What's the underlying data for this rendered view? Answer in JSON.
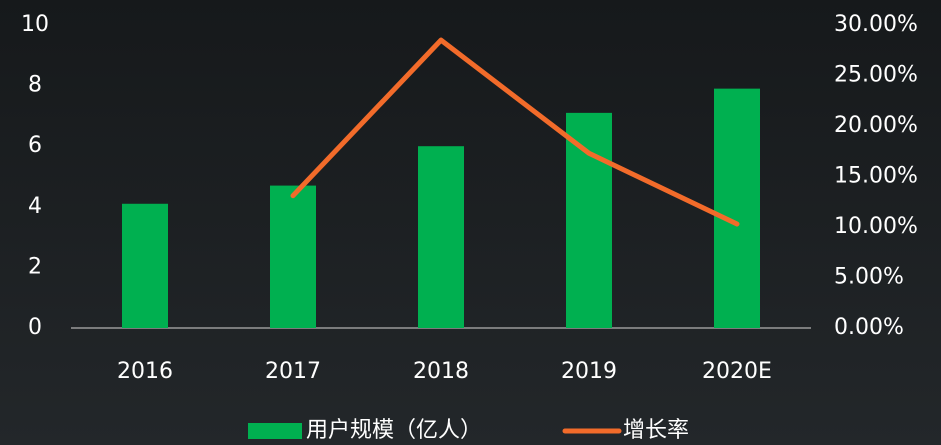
{
  "chart_data": {
    "type": "bar-line",
    "categories": [
      "2016",
      "2017",
      "2018",
      "2019",
      "2020E"
    ],
    "series": [
      {
        "name": "用户规模（亿人）",
        "color": "#00b050",
        "type": "bar",
        "values": [
          4.1,
          4.7,
          6.0,
          7.1,
          7.9
        ]
      },
      {
        "name": "增长率",
        "color": "#f26b2a",
        "type": "line",
        "axis": "y2",
        "values": [
          null,
          13.1,
          28.5,
          17.3,
          10.3
        ]
      }
    ],
    "ylim": [
      0,
      10
    ],
    "yticks": [
      0,
      2,
      4,
      6,
      8,
      10
    ],
    "y2lim": [
      0,
      30
    ],
    "y2ticks": [
      {
        "value": 0,
        "label": "0.00%"
      },
      {
        "value": 5,
        "label": "5.00%"
      },
      {
        "value": 10,
        "label": "10.00%"
      },
      {
        "value": 15,
        "label": "15.00%"
      },
      {
        "value": 20,
        "label": "20.00%"
      },
      {
        "value": 25,
        "label": "25.00%"
      },
      {
        "value": 30,
        "label": "30.00%"
      }
    ],
    "legend": "bottom"
  }
}
